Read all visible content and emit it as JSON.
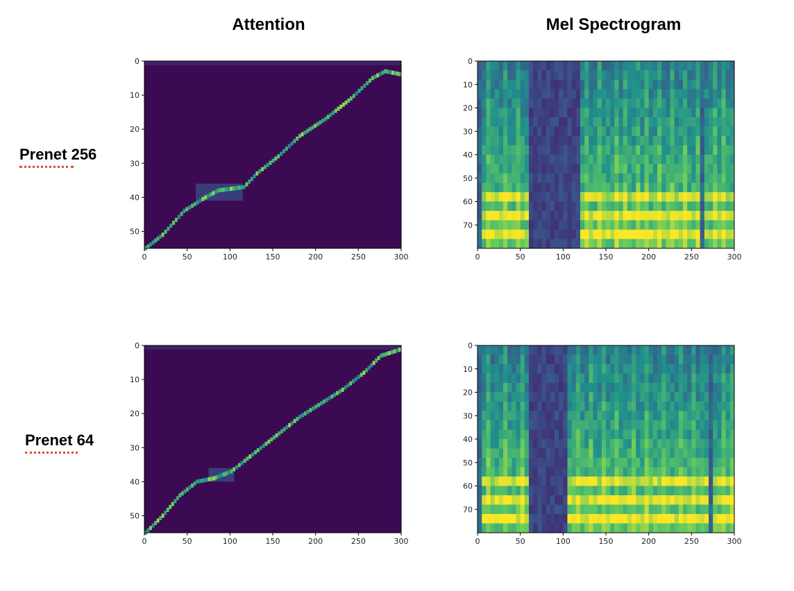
{
  "column_titles": {
    "left": "Attention",
    "right": "Mel Spectrogram"
  },
  "row_labels": [
    {
      "text": "Prenet 256",
      "spell_mark": "Prenet"
    },
    {
      "text": "Prenet 64",
      "spell_mark": "Prenet"
    }
  ],
  "colors": {
    "background": "#3b0a52",
    "squiggle": "#e04a36"
  },
  "chart_data": [
    {
      "type": "heatmap",
      "title": "Attention",
      "row": "Prenet 256",
      "xlim": [
        0,
        300
      ],
      "ylim": [
        0,
        55
      ],
      "xticks": [
        "0",
        "50",
        "100",
        "150",
        "200",
        "250",
        "300"
      ],
      "yticks": [
        "0",
        "10",
        "20",
        "30",
        "40",
        "50"
      ],
      "alignment_path": [
        [
          0,
          55
        ],
        [
          20,
          51
        ],
        [
          45,
          44
        ],
        [
          70,
          40
        ],
        [
          85,
          38
        ],
        [
          115,
          37
        ],
        [
          130,
          33
        ],
        [
          155,
          28
        ],
        [
          180,
          22
        ],
        [
          210,
          17
        ],
        [
          240,
          11
        ],
        [
          265,
          5
        ],
        [
          280,
          3
        ],
        [
          300,
          4
        ]
      ],
      "diffuse_region": {
        "x": [
          60,
          115
        ],
        "y": [
          36,
          41
        ]
      }
    },
    {
      "type": "heatmap",
      "title": "Mel Spectrogram",
      "row": "Prenet 256",
      "xlim": [
        0,
        300
      ],
      "ylim": [
        0,
        80
      ],
      "xticks": [
        "0",
        "50",
        "100",
        "150",
        "200",
        "250",
        "300"
      ],
      "yticks": [
        "0",
        "10",
        "20",
        "30",
        "40",
        "50",
        "60",
        "70"
      ],
      "voiced_segments": [
        [
          5,
          60
        ],
        [
          120,
          205
        ],
        [
          205,
          260
        ],
        [
          262,
          300
        ]
      ],
      "silent_segments": [
        [
          60,
          120
        ]
      ],
      "bright_columns": [
        10,
        30,
        45,
        125,
        140,
        160,
        170,
        185,
        195,
        210,
        225,
        240,
        255,
        275,
        285
      ]
    },
    {
      "type": "heatmap",
      "title": "Attention",
      "row": "Prenet 64",
      "xlim": [
        0,
        300
      ],
      "ylim": [
        0,
        55
      ],
      "xticks": [
        "0",
        "50",
        "100",
        "150",
        "200",
        "250",
        "300"
      ],
      "yticks": [
        "0",
        "10",
        "20",
        "30",
        "40",
        "50"
      ],
      "alignment_path": [
        [
          0,
          55
        ],
        [
          20,
          50
        ],
        [
          40,
          44
        ],
        [
          60,
          40
        ],
        [
          80,
          39
        ],
        [
          100,
          37
        ],
        [
          125,
          32
        ],
        [
          150,
          27
        ],
        [
          180,
          21
        ],
        [
          205,
          17
        ],
        [
          230,
          13
        ],
        [
          255,
          8
        ],
        [
          275,
          3
        ],
        [
          300,
          1
        ]
      ],
      "diffuse_region": {
        "x": [
          75,
          105
        ],
        "y": [
          36,
          40
        ]
      }
    },
    {
      "type": "heatmap",
      "title": "Mel Spectrogram",
      "row": "Prenet 64",
      "xlim": [
        0,
        300
      ],
      "ylim": [
        0,
        80
      ],
      "xticks": [
        "0",
        "50",
        "100",
        "150",
        "200",
        "250",
        "300"
      ],
      "yticks": [
        "0",
        "10",
        "20",
        "30",
        "40",
        "50",
        "60",
        "70"
      ],
      "voiced_segments": [
        [
          5,
          60
        ],
        [
          105,
          200
        ],
        [
          200,
          270
        ],
        [
          272,
          300
        ]
      ],
      "silent_segments": [
        [
          60,
          105
        ]
      ],
      "bright_columns": [
        10,
        30,
        50,
        115,
        130,
        145,
        160,
        180,
        195,
        215,
        235,
        250,
        285,
        295
      ]
    }
  ]
}
